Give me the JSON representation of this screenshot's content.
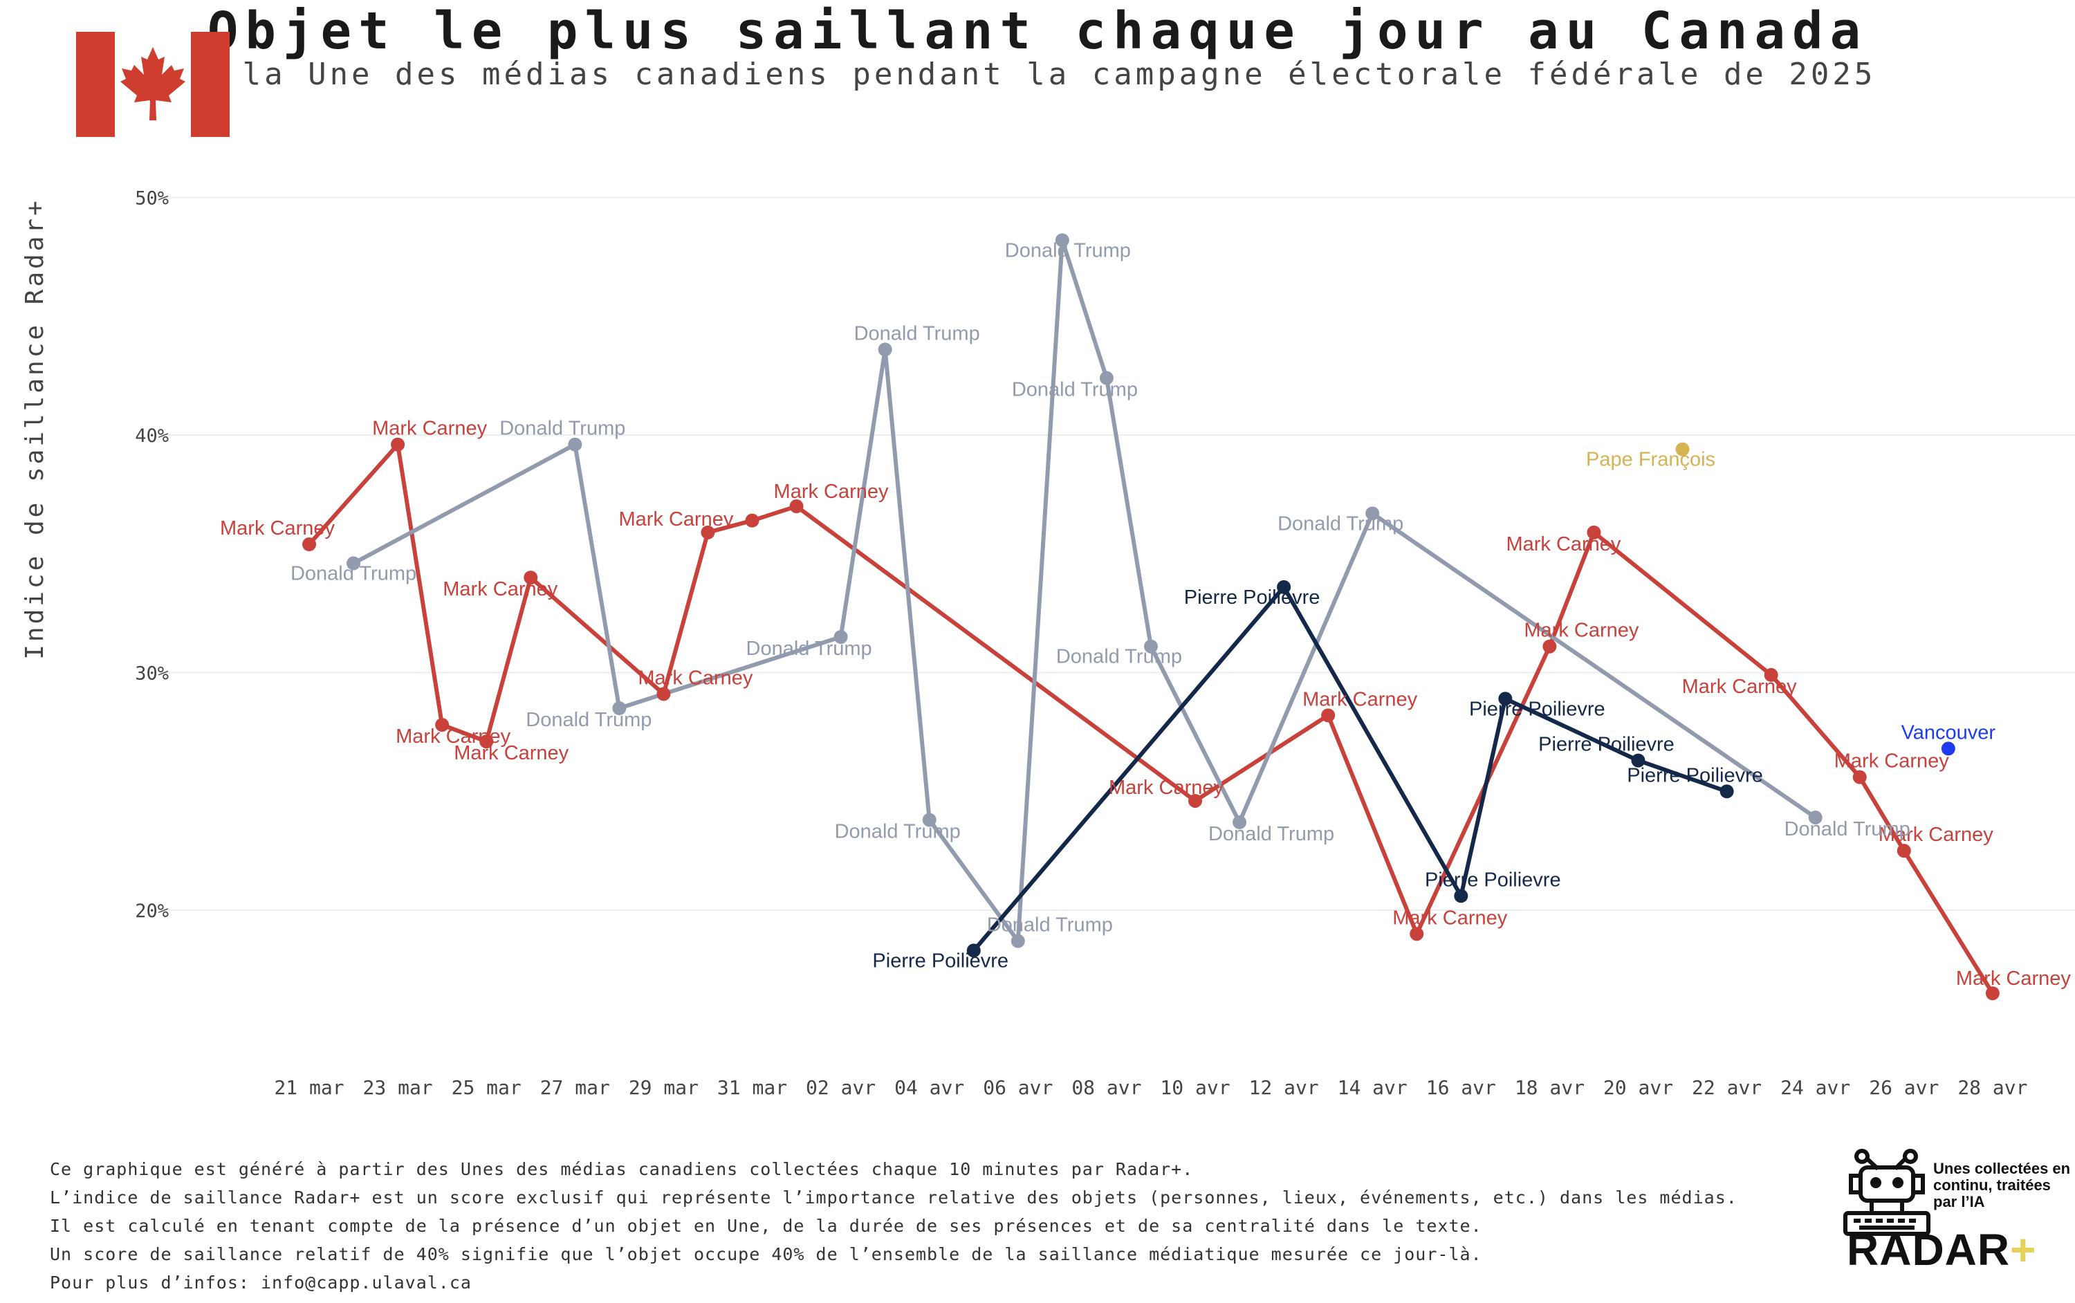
{
  "header": {
    "title": "Objet le plus saillant chaque jour au Canada",
    "subtitle": "À la Une des médias canadiens pendant la campagne électorale fédérale de 2025"
  },
  "colors": {
    "mark_carney": "#c8413b",
    "donald_trump": "#929aae",
    "pierre_poilievre": "#142849",
    "pape_francois": "#d6b352",
    "vancouver": "#1f3bf0",
    "flag_red": "#cf3d2e"
  },
  "chart_data": {
    "type": "line",
    "title": "Objet le plus saillant chaque jour au Canada",
    "ylabel": "Indice de saillance Radar+",
    "xlabel": "",
    "ylim": [
      15,
      51
    ],
    "y_ticks": [
      20,
      30,
      40,
      50
    ],
    "y_tick_labels": [
      "20%",
      "30%",
      "40%",
      "50%"
    ],
    "grid": true,
    "x_tick_labels": [
      "21 mar",
      "23 mar",
      "25 mar",
      "27 mar",
      "29 mar",
      "31 mar",
      "02 avr",
      "04 avr",
      "06 avr",
      "08 avr",
      "10 avr",
      "12 avr",
      "14 avr",
      "16 avr",
      "18 avr",
      "20 avr",
      "22 avr",
      "24 avr",
      "26 avr",
      "28 avr"
    ],
    "series": [
      {
        "name": "Mark Carney",
        "points": [
          {
            "day": 0,
            "value": 35.4
          },
          {
            "day": 2,
            "value": 39.6
          },
          {
            "day": 3,
            "value": 27.8
          },
          {
            "day": 4,
            "value": 27.1
          },
          {
            "day": 5,
            "value": 34.0
          },
          {
            "day": 8,
            "value": 29.1
          },
          {
            "day": 9,
            "value": 35.9
          },
          {
            "day": 10,
            "value": 36.4
          },
          {
            "day": 11,
            "value": 37.0
          },
          {
            "day": 20,
            "value": 24.6
          },
          {
            "day": 23,
            "value": 28.2
          },
          {
            "day": 25,
            "value": 19.0
          },
          {
            "day": 28,
            "value": 31.1
          },
          {
            "day": 29,
            "value": 35.9
          },
          {
            "day": 33,
            "value": 29.9
          },
          {
            "day": 35,
            "value": 25.6
          },
          {
            "day": 36,
            "value": 22.5
          },
          {
            "day": 38,
            "value": 16.5
          }
        ]
      },
      {
        "name": "Donald Trump",
        "points": [
          {
            "day": 1,
            "value": 34.6
          },
          {
            "day": 6,
            "value": 39.6
          },
          {
            "day": 7,
            "value": 28.5
          },
          {
            "day": 12,
            "value": 31.5
          },
          {
            "day": 13,
            "value": 43.6
          },
          {
            "day": 14,
            "value": 23.8
          },
          {
            "day": 16,
            "value": 18.7
          },
          {
            "day": 17,
            "value": 48.2
          },
          {
            "day": 18,
            "value": 42.4
          },
          {
            "day": 19,
            "value": 31.1
          },
          {
            "day": 21,
            "value": 23.7
          },
          {
            "day": 24,
            "value": 36.7
          },
          {
            "day": 34,
            "value": 23.9
          }
        ]
      },
      {
        "name": "Pierre Poilievre",
        "points": [
          {
            "day": 15,
            "value": 18.3
          },
          {
            "day": 22,
            "value": 33.6
          },
          {
            "day": 26,
            "value": 20.6
          },
          {
            "day": 27,
            "value": 28.9
          },
          {
            "day": 30,
            "value": 26.3
          },
          {
            "day": 32,
            "value": 25.0
          }
        ]
      },
      {
        "name": "Pape François",
        "points": [
          {
            "day": 31,
            "value": 39.4
          }
        ]
      },
      {
        "name": "Vancouver",
        "points": [
          {
            "day": 37,
            "value": 26.8
          }
        ]
      }
    ]
  },
  "footnotes": [
    "Ce graphique est généré à partir des Unes des médias canadiens collectées chaque 10 minutes par Radar+.",
    "L’indice de saillance Radar+ est un score exclusif qui représente l’importance relative des objets (personnes, lieux, événements, etc.) dans les médias.",
    "Il est calculé en tenant compte de la présence d’un objet en Une, de la durée de ses présences et de sa centralité dans le texte.",
    "Un score de saillance relatif de 40% signifie que l’objet occupe 40% de l’ensemble de la saillance médiatique mesurée ce jour-là.",
    "Pour plus d’infos: info@capp.ulaval.ca"
  ],
  "logo": {
    "caption": "Unes collectées en continu, traitées par l’IA",
    "wordmark": "RADAR",
    "plus": "+"
  }
}
